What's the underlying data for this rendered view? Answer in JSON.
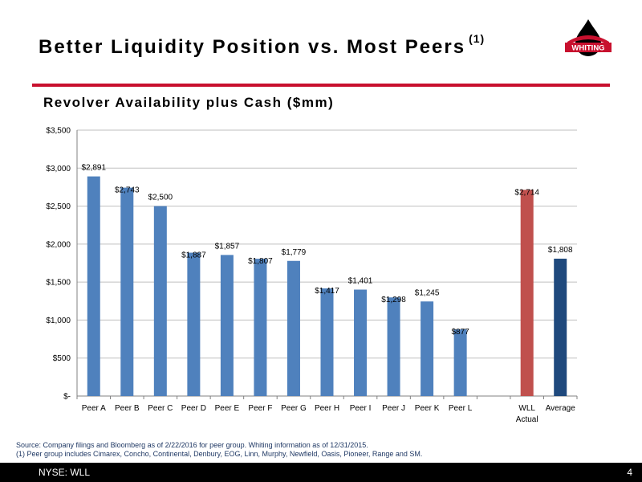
{
  "slide": {
    "title": "Better Liquidity Position vs. Most Peers",
    "title_footnote": "(1)",
    "subtitle": "Revolver Availability plus Cash ($mm)",
    "logo_text": "WHITING",
    "source_line": "Source: Company filings and Bloomberg as of 2/22/2016 for peer group.  Whiting information as of 12/31/2015.",
    "footnote_line": "(1)  Peer group includes Cimarex, Concho, Continental, Denbury, EOG, Linn, Murphy, Newfield, Oasis, Pioneer, Range and SM.",
    "ticker": "NYSE: WLL",
    "page_number": "4"
  },
  "colors": {
    "accent_red": "#c8102e",
    "bar_blue": "#4f81bd",
    "bar_red": "#c0504d",
    "bar_navy": "#1f497d",
    "source_text": "#1f3864"
  },
  "chart_data": {
    "type": "bar",
    "categories": [
      "Peer A",
      "Peer B",
      "Peer C",
      "Peer D",
      "Peer E",
      "Peer F",
      "Peer G",
      "Peer H",
      "Peer I",
      "Peer J",
      "Peer K",
      "Peer L",
      "",
      "WLL\nActual",
      "Average"
    ],
    "values": [
      2891,
      2743,
      2500,
      1887,
      1857,
      1807,
      1779,
      1417,
      1401,
      1298,
      1245,
      877,
      null,
      2714,
      1808
    ],
    "data_labels": [
      "$2,891",
      "$2,743",
      "$2,500",
      "$1,887",
      "$1,857",
      "$1,807",
      "$1,779",
      "$1,417",
      "$1,401",
      "$1,298",
      "$1,245",
      "$877",
      "",
      "$2,714",
      "$1,808"
    ],
    "bar_colors": [
      "#4f81bd",
      "#4f81bd",
      "#4f81bd",
      "#4f81bd",
      "#4f81bd",
      "#4f81bd",
      "#4f81bd",
      "#4f81bd",
      "#4f81bd",
      "#4f81bd",
      "#4f81bd",
      "#4f81bd",
      "",
      "#c0504d",
      "#1f497d"
    ],
    "yticks": [
      0,
      500,
      1000,
      1500,
      2000,
      2500,
      3000,
      3500
    ],
    "ytick_labels": [
      "$-",
      "$500",
      "$1,000",
      "$1,500",
      "$2,000",
      "$2,500",
      "$3,000",
      "$3,500"
    ],
    "ylim": [
      0,
      3500
    ],
    "grid": true,
    "legend": "none",
    "title": "",
    "xlabel": "",
    "ylabel": ""
  }
}
